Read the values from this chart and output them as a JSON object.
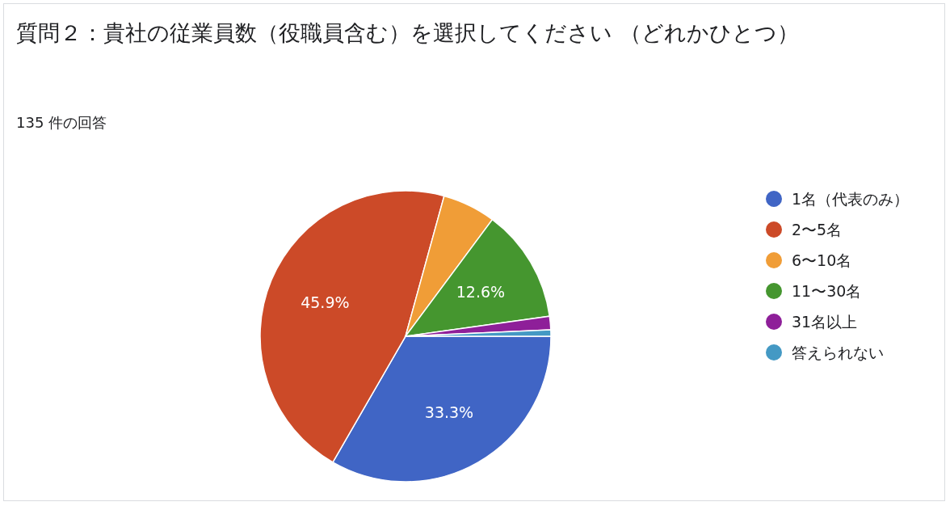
{
  "chart_data": {
    "type": "pie",
    "title": "質問２：貴社の従業員数（役職員含む）を選択してください （どれかひとつ）",
    "subtitle": "135 件の回答",
    "categories": [
      "1名（代表のみ）",
      "2〜5名",
      "6〜10名",
      "11〜30名",
      "31名以上",
      "答えられない"
    ],
    "values": [
      33.3,
      45.9,
      5.9,
      12.6,
      1.5,
      0.7
    ],
    "colors": [
      "#4065c5",
      "#cc4a28",
      "#f09d37",
      "#45962f",
      "#8e1f99",
      "#4499c4"
    ],
    "value_labels": [
      "33.3%",
      "45.9%",
      null,
      "12.6%",
      null,
      null
    ],
    "legend": "right"
  }
}
